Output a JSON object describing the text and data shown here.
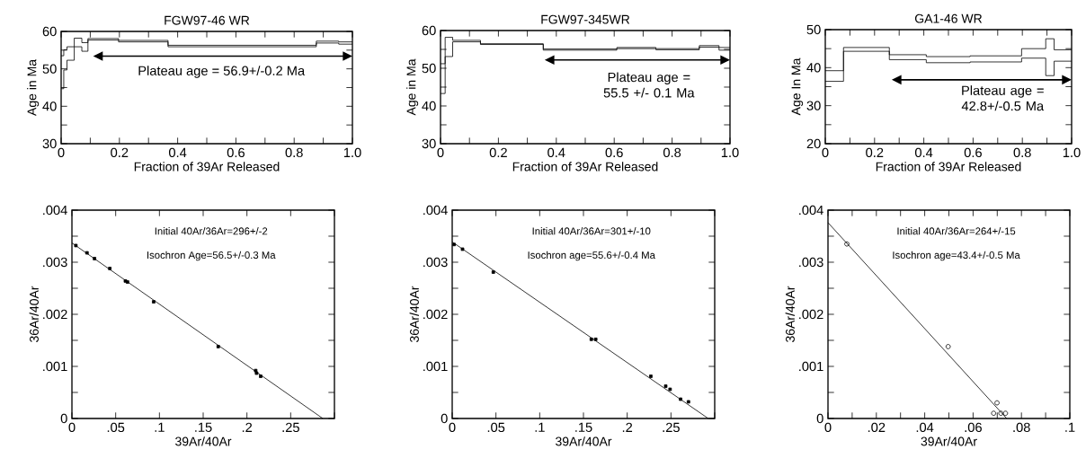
{
  "chart_data": [
    {
      "type": "step",
      "title": "FGW97-46 WR",
      "xlabel": "Fraction of 39Ar Released",
      "ylabel": "Age in Ma",
      "annotations": [
        "Plateau age = 56.9+/-0.2 Ma"
      ],
      "xlim": [
        0,
        1
      ],
      "ylim": [
        30,
        60
      ],
      "xticks": [
        0,
        {
          "value": 0.1,
          "label": null
        },
        0.2,
        {
          "value": 0.3,
          "label": null
        },
        0.4,
        {
          "value": 0.5,
          "label": null
        },
        0.6,
        {
          "value": 0.7,
          "label": null
        },
        0.8,
        {
          "value": 0.9,
          "label": null
        },
        {
          "value": 1,
          "label": "1.0"
        }
      ],
      "yticks": [
        30,
        {
          "value": 35,
          "label": null
        },
        40,
        {
          "value": 45,
          "label": null
        },
        50,
        {
          "value": 55,
          "label": null
        },
        60
      ],
      "series": [
        {
          "color": "#000000",
          "x": [
            0,
            0.009,
            0.02,
            0.045,
            0.071,
            0.092,
            0.197,
            0.367,
            0.876,
            0.953,
            1.0
          ],
          "values": [
            53.5,
            55.1,
            55.9,
            58.2,
            57.0,
            58.1,
            57.6,
            56.3,
            57.4,
            57.2,
            57.2
          ]
        },
        {
          "color": "#000000",
          "x": [
            0,
            0.009,
            0.02,
            0.045,
            0.071,
            0.092,
            0.197,
            0.367,
            0.876,
            0.953,
            1.0
          ],
          "values": [
            44.7,
            49.7,
            52.3,
            55.9,
            54.7,
            57.7,
            57.2,
            55.9,
            56.9,
            56.6,
            56.6
          ]
        }
      ]
    },
    {
      "type": "step",
      "title": "FGW97-345WR",
      "xlabel": "Fraction of 39Ar Released",
      "ylabel": "Age in Ma",
      "annotations": [
        "Plateau age = 55.5 +/- 0.1 Ma"
      ],
      "xlim": [
        0,
        1
      ],
      "ylim": [
        30,
        60
      ],
      "xticks": [
        0,
        {
          "value": 0.1,
          "label": null
        },
        0.2,
        {
          "value": 0.3,
          "label": null
        },
        0.4,
        {
          "value": 0.5,
          "label": null
        },
        0.6,
        {
          "value": 0.7,
          "label": null
        },
        0.8,
        {
          "value": 0.9,
          "label": null
        },
        {
          "value": 1,
          "label": "1.0"
        }
      ],
      "yticks": [
        30,
        {
          "value": 35,
          "label": null
        },
        40,
        {
          "value": 45,
          "label": null
        },
        50,
        {
          "value": 55,
          "label": null
        },
        60
      ],
      "series": [
        {
          "color": "#000000",
          "x": [
            0,
            0.016,
            0.042,
            0.138,
            0.355,
            0.609,
            0.744,
            0.894,
            0.962,
            1.0
          ],
          "values": [
            51.2,
            58.2,
            57.4,
            56.5,
            55.1,
            55.5,
            55.2,
            56.0,
            55.5,
            55.5
          ]
        },
        {
          "color": "#000000",
          "x": [
            0,
            0.016,
            0.042,
            0.138,
            0.355,
            0.609,
            0.744,
            0.894,
            0.962,
            1.0
          ],
          "values": [
            43.3,
            53.1,
            57.0,
            56.3,
            54.8,
            55.2,
            54.9,
            55.6,
            54.8,
            54.8
          ]
        }
      ]
    },
    {
      "type": "step",
      "title": "GA1-46 WR",
      "xlabel": "Fraction of 39Ar Released",
      "ylabel": "Age In Ma",
      "annotations": [
        "Plateau age = 42.8+/-0.5 Ma"
      ],
      "xlim": [
        0,
        1
      ],
      "ylim": [
        20,
        50
      ],
      "xticks": [
        0,
        {
          "value": 0.1,
          "label": null
        },
        0.2,
        {
          "value": 0.3,
          "label": null
        },
        0.4,
        {
          "value": 0.5,
          "label": null
        },
        0.6,
        {
          "value": 0.7,
          "label": null
        },
        0.8,
        {
          "value": 0.9,
          "label": null
        },
        {
          "value": 1,
          "label": "1.0"
        }
      ],
      "yticks": [
        20,
        {
          "value": 25,
          "label": null
        },
        30,
        {
          "value": 35,
          "label": null
        },
        40,
        {
          "value": 45,
          "label": null
        },
        50
      ],
      "series": [
        {
          "color": "#000000",
          "x": [
            0,
            0.074,
            0.26,
            0.41,
            0.588,
            0.797,
            0.895,
            0.929,
            1.0
          ],
          "values": [
            39.2,
            45.3,
            43.4,
            42.9,
            43.1,
            45.0,
            47.6,
            44.7,
            44.7
          ]
        },
        {
          "color": "#000000",
          "x": [
            0,
            0.074,
            0.26,
            0.41,
            0.588,
            0.797,
            0.895,
            0.929,
            1.0
          ],
          "values": [
            36.4,
            44.3,
            42.1,
            41.3,
            41.5,
            42.5,
            37.9,
            41.7,
            41.7
          ]
        }
      ]
    },
    {
      "type": "scatter",
      "xlabel": "39Ar/40Ar",
      "ylabel": "36Ar/40Ar",
      "annotations": [
        "Initial 40Ar/36Ar=296+/-2",
        "Isochron Age=56.5+/-0.3 Ma"
      ],
      "xlim": [
        0,
        0.3
      ],
      "ylim": [
        0,
        0.004
      ],
      "xticks": [
        0,
        {
          "value": 0.05,
          "label": ".05"
        },
        {
          "value": 0.1,
          "label": ".1"
        },
        {
          "value": 0.15,
          "label": ".15"
        },
        {
          "value": 0.2,
          "label": ".2"
        },
        {
          "value": 0.25,
          "label": ".25"
        },
        {
          "value": 0.3,
          "label": null
        }
      ],
      "yticks": [
        0,
        {
          "value": 0.0005,
          "label": null
        },
        {
          "value": 0.001,
          "label": ".001"
        },
        {
          "value": 0.0015,
          "label": null
        },
        {
          "value": 0.002,
          "label": ".002"
        },
        {
          "value": 0.0025,
          "label": null
        },
        {
          "value": 0.003,
          "label": ".003"
        },
        {
          "value": 0.0035,
          "label": null
        },
        {
          "value": 0.004,
          "label": ".004"
        }
      ],
      "series": [
        {
          "color": "#000000",
          "marker": "square",
          "x": [
            0.0045,
            0.0172,
            0.0258,
            0.0433,
            0.0611,
            0.0635,
            0.0934,
            0.1672,
            0.21,
            0.211,
            0.2157
          ],
          "values": [
            0.00332,
            0.00318,
            0.00307,
            0.00288,
            0.00264,
            0.00262,
            0.00224,
            0.00138,
            0.00092,
            0.00087,
            0.00081
          ]
        },
        {
          "type": "line",
          "color": "#000000",
          "x": [
            0,
            0.2867
          ],
          "values": [
            0.00337,
            0
          ]
        }
      ]
    },
    {
      "type": "scatter",
      "xlabel": "39Ar/40Ar",
      "ylabel": "36Ar/40Ar",
      "annotations": [
        "Initial 40Ar/36Ar=301+/-10",
        "Isochron age=55.6+/-0.4 Ma"
      ],
      "xlim": [
        0,
        0.3
      ],
      "ylim": [
        0,
        0.004
      ],
      "xticks": [
        0,
        {
          "value": 0.05,
          "label": ".05"
        },
        {
          "value": 0.1,
          "label": ".1"
        },
        {
          "value": 0.15,
          "label": ".15"
        },
        {
          "value": 0.2,
          "label": ".2"
        },
        {
          "value": 0.25,
          "label": ".25"
        },
        {
          "value": 0.3,
          "label": null
        }
      ],
      "yticks": [
        0,
        {
          "value": 0.0005,
          "label": null
        },
        {
          "value": 0.001,
          "label": ".001"
        },
        {
          "value": 0.0015,
          "label": null
        },
        {
          "value": 0.002,
          "label": ".002"
        },
        {
          "value": 0.0025,
          "label": null
        },
        {
          "value": 0.003,
          "label": ".003"
        },
        {
          "value": 0.0035,
          "label": null
        },
        {
          "value": 0.004,
          "label": ".004"
        }
      ],
      "series": [
        {
          "color": "#000000",
          "marker": "square",
          "x": [
            0.0021,
            0.0118,
            0.047,
            0.159,
            0.164,
            0.227,
            0.244,
            0.249,
            0.261,
            0.27
          ],
          "values": [
            0.00334,
            0.00325,
            0.00281,
            0.00152,
            0.00152,
            0.00081,
            0.00062,
            0.00056,
            0.00037,
            0.00032
          ]
        },
        {
          "type": "line",
          "color": "#000000",
          "x": [
            0,
            0.2926
          ],
          "values": [
            0.00339,
            0
          ]
        }
      ]
    },
    {
      "type": "scatter",
      "xlabel": "39Ar/40Ar",
      "ylabel": "36Ar/40Ar",
      "annotations": [
        "Initial 40Ar/36Ar=264+/-15",
        "Isochron age=43.4+/-0.5 Ma"
      ],
      "xlim": [
        0,
        0.1
      ],
      "ylim": [
        0,
        0.004
      ],
      "xticks": [
        0,
        {
          "value": 0.01,
          "label": null
        },
        {
          "value": 0.02,
          "label": ".02"
        },
        {
          "value": 0.03,
          "label": null
        },
        {
          "value": 0.04,
          "label": ".04"
        },
        {
          "value": 0.05,
          "label": null
        },
        {
          "value": 0.06,
          "label": ".06"
        },
        {
          "value": 0.07,
          "label": null
        },
        {
          "value": 0.08,
          "label": ".08"
        },
        {
          "value": 0.09,
          "label": null
        },
        {
          "value": 0.1,
          "label": ".1"
        }
      ],
      "yticks": [
        0,
        {
          "value": 0.0005,
          "label": null
        },
        {
          "value": 0.001,
          "label": ".001"
        },
        {
          "value": 0.0015,
          "label": null
        },
        {
          "value": 0.002,
          "label": ".002"
        },
        {
          "value": 0.0025,
          "label": null
        },
        {
          "value": 0.003,
          "label": ".003"
        },
        {
          "value": 0.0035,
          "label": null
        },
        {
          "value": 0.004,
          "label": ".004"
        }
      ],
      "series": [
        {
          "color": "#000000",
          "marker": "circle",
          "x": [
            0.0078,
            0.0497,
            0.0699,
            0.0685,
            0.0715,
            0.0734
          ],
          "values": [
            0.00335,
            0.00138,
            0.0003,
            0.0001,
            0.0001,
            0.0001
          ]
        },
        {
          "type": "line",
          "color": "#000000",
          "x": [
            0,
            0.0739
          ],
          "values": [
            0.00376,
            0
          ]
        }
      ]
    }
  ]
}
